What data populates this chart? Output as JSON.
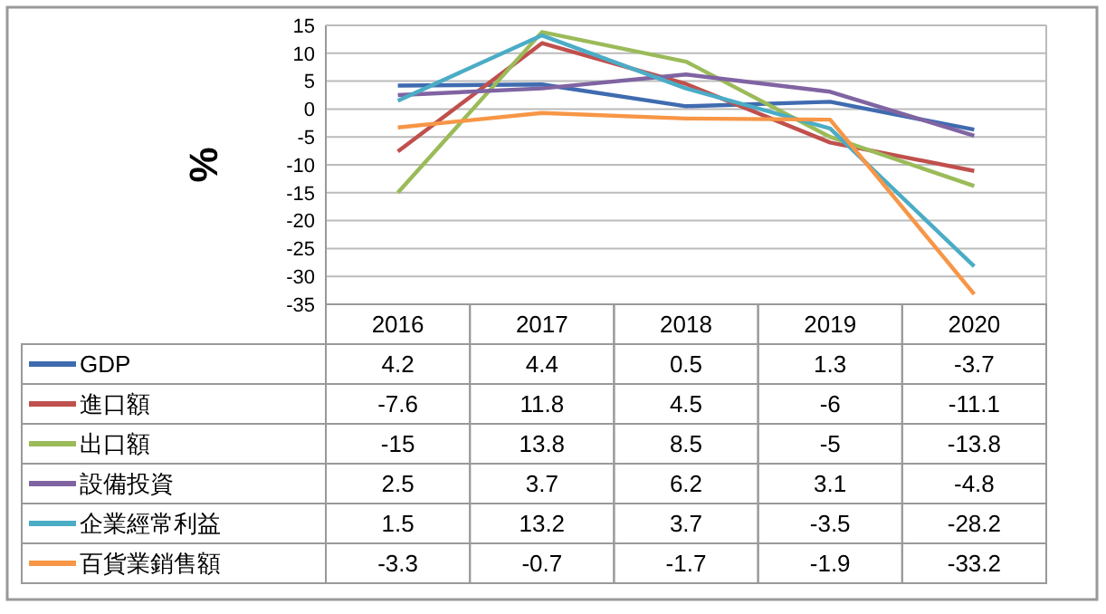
{
  "chart_data": {
    "type": "line",
    "ylabel": "%",
    "categories": [
      "2016",
      "2017",
      "2018",
      "2019",
      "2020"
    ],
    "ylim": [
      -35,
      15
    ],
    "yticks": [
      15,
      10,
      5,
      0,
      -5,
      -10,
      -15,
      -20,
      -25,
      -30,
      -35
    ],
    "grid": "y",
    "data_labels": true,
    "legend": "bottom",
    "marker": "none",
    "line_style": "solid",
    "series": [
      {
        "name": "GDP",
        "color": "#3f6bb0",
        "values": [
          4.2,
          4.4,
          0.5,
          1.3,
          -3.7
        ]
      },
      {
        "name": "進口額",
        "color": "#c0504d",
        "values": [
          -7.6,
          11.8,
          4.5,
          -6,
          -11.1
        ]
      },
      {
        "name": "出口額",
        "color": "#9bbb59",
        "values": [
          -15,
          13.8,
          8.5,
          -5,
          -13.8
        ]
      },
      {
        "name": "設備投資",
        "color": "#8064a2",
        "values": [
          2.5,
          3.7,
          6.2,
          3.1,
          -4.8
        ]
      },
      {
        "name": "企業經常利益",
        "color": "#4bacc6",
        "values": [
          1.5,
          13.2,
          3.7,
          -3.5,
          -28.2
        ]
      },
      {
        "name": "百貨業銷售額",
        "color": "#f79646",
        "values": [
          -3.3,
          -0.7,
          -1.7,
          -1.9,
          -33.2
        ]
      }
    ]
  }
}
